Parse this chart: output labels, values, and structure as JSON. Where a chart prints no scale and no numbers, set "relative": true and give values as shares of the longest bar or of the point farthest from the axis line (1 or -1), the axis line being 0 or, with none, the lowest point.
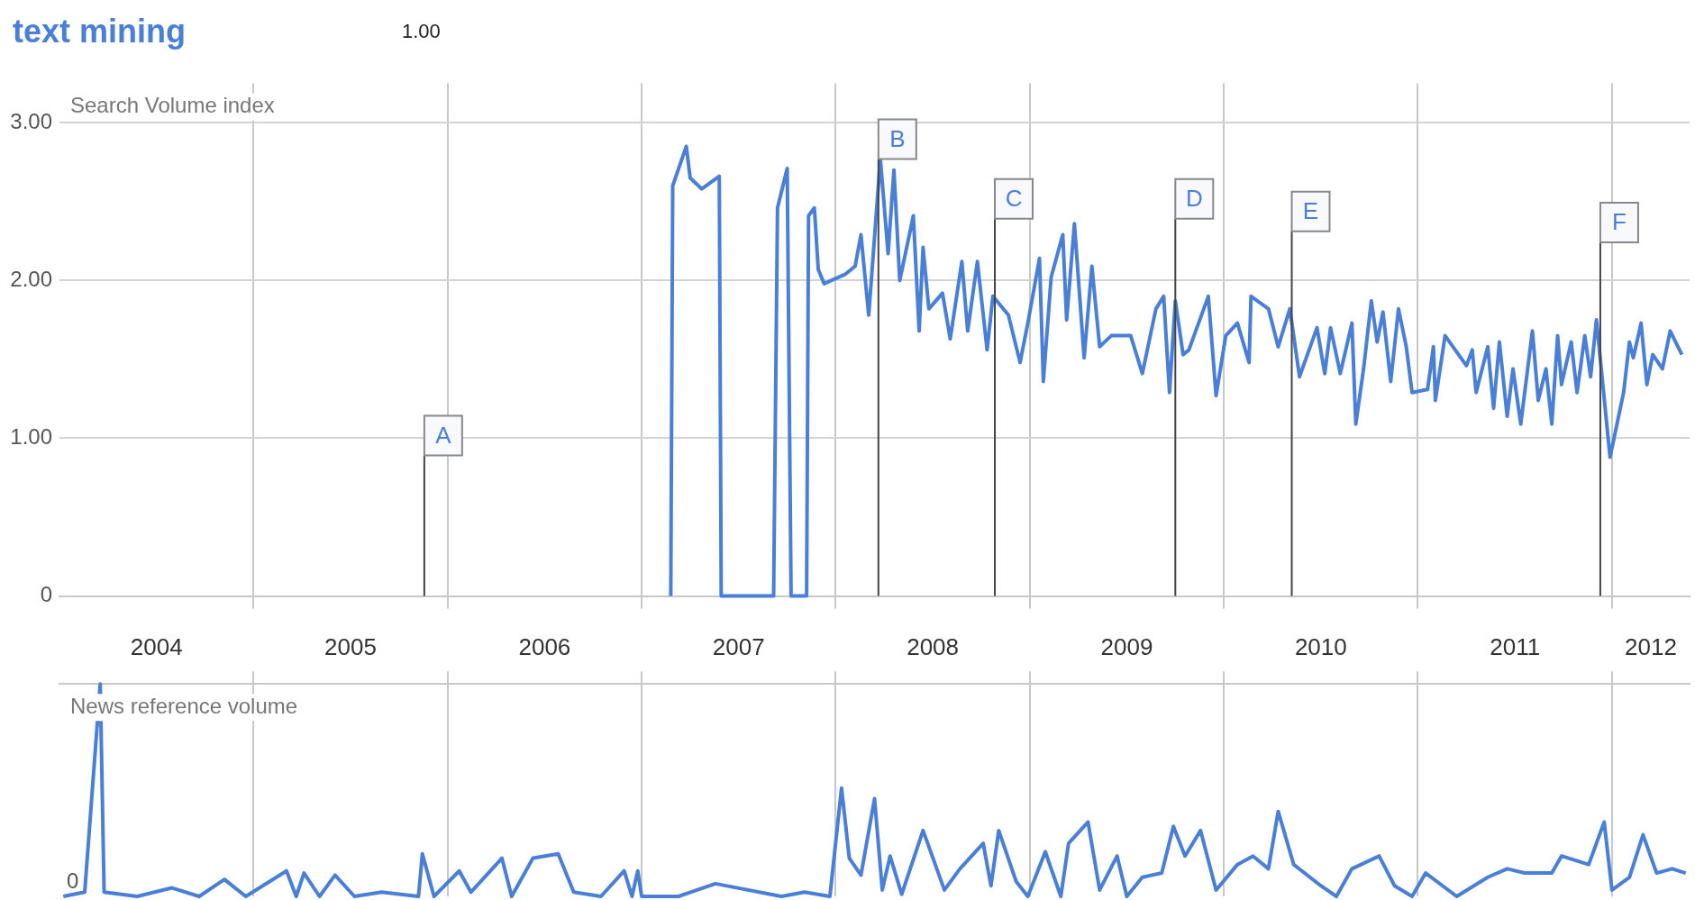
{
  "chart_data": [
    {
      "type": "line",
      "ylabel": "Search Volume index",
      "legend": "top left",
      "grid": true,
      "marker": "none",
      "tick_labels": "y",
      "annotations": [
        "1.00"
      ],
      "ref_lines": [
        {
          "axis": "x",
          "value": 2005.88,
          "label": "A"
        },
        {
          "axis": "x",
          "value": 2008.22,
          "label": "B"
        },
        {
          "axis": "x",
          "value": 2008.82,
          "label": "C"
        },
        {
          "axis": "x",
          "value": 2009.75,
          "label": "D"
        },
        {
          "axis": "x",
          "value": 2010.35,
          "label": "E"
        },
        {
          "axis": "x",
          "value": 2011.94,
          "label": "F"
        }
      ],
      "xlim": [
        2004,
        2012.4
      ],
      "ylim": [
        0,
        3.25
      ],
      "xticks": [
        {
          "value": 2005,
          "label": null
        },
        {
          "value": 2006,
          "label": null
        },
        {
          "value": 2007,
          "label": null
        },
        {
          "value": 2008,
          "label": null
        },
        {
          "value": 2009,
          "label": null
        },
        {
          "value": 2010,
          "label": null
        },
        {
          "value": 2011,
          "label": null
        },
        {
          "value": 2012,
          "label": null
        }
      ],
      "yticks": [
        {
          "value": 0,
          "label": "0"
        },
        {
          "value": 1,
          "label": "1.00"
        },
        {
          "value": 2,
          "label": "2.00"
        },
        {
          "value": 3,
          "label": "3.00"
        }
      ],
      "series": [
        {
          "name": "text mining",
          "color": "#4a7fd8",
          "x": [
            2007.15,
            2007.16,
            2007.23,
            2007.25,
            2007.31,
            2007.4,
            2007.41,
            2007.68,
            2007.7,
            2007.75,
            2007.77,
            2007.85,
            2007.86,
            2007.89,
            2007.91,
            2007.94,
            2008.05,
            2008.1,
            2008.13,
            2008.17,
            2008.23,
            2008.27,
            2008.3,
            2008.33,
            2008.4,
            2008.43,
            2008.45,
            2008.48,
            2008.55,
            2008.59,
            2008.65,
            2008.68,
            2008.73,
            2008.78,
            2008.81,
            2008.89,
            2008.95,
            2008.99,
            2009.05,
            2009.07,
            2009.11,
            2009.17,
            2009.19,
            2009.23,
            2009.28,
            2009.32,
            2009.36,
            2009.42,
            2009.52,
            2009.58,
            2009.65,
            2009.69,
            2009.72,
            2009.75,
            2009.79,
            2009.82,
            2009.92,
            2009.96,
            2010.01,
            2010.07,
            2010.13,
            2010.14,
            2010.23,
            2010.28,
            2010.34,
            2010.39,
            2010.48,
            2010.52,
            2010.55,
            2010.6,
            2010.66,
            2010.68,
            2010.72,
            2010.76,
            2010.79,
            2010.82,
            2010.86,
            2010.9,
            2010.94,
            2010.97,
            2011.05,
            2011.08,
            2011.09,
            2011.14,
            2011.25,
            2011.28,
            2011.3,
            2011.36,
            2011.39,
            2011.42,
            2011.46,
            2011.49,
            2011.53,
            2011.59,
            2011.62,
            2011.66,
            2011.69,
            2011.72,
            2011.74,
            2011.79,
            2011.82,
            2011.86,
            2011.89,
            2011.92,
            2011.99,
            2012.06,
            2012.09,
            2012.11,
            2012.15,
            2012.18,
            2012.21,
            2012.26,
            2012.3,
            2012.36
          ],
          "values": [
            0,
            2.6,
            2.85,
            2.65,
            2.58,
            2.66,
            0,
            0,
            2.46,
            2.71,
            0,
            0,
            2.41,
            2.46,
            2.07,
            1.98,
            2.04,
            2.09,
            2.29,
            1.78,
            2.77,
            2.17,
            2.7,
            2.0,
            2.41,
            1.68,
            2.21,
            1.82,
            1.92,
            1.63,
            2.12,
            1.68,
            2.12,
            1.56,
            1.9,
            1.78,
            1.48,
            1.73,
            2.14,
            1.36,
            2.02,
            2.29,
            1.75,
            2.36,
            1.51,
            2.09,
            1.58,
            1.65,
            1.65,
            1.41,
            1.82,
            1.9,
            1.29,
            1.87,
            1.53,
            1.56,
            1.9,
            1.27,
            1.65,
            1.73,
            1.48,
            1.9,
            1.82,
            1.58,
            1.82,
            1.39,
            1.7,
            1.41,
            1.7,
            1.41,
            1.73,
            1.09,
            1.44,
            1.87,
            1.61,
            1.8,
            1.36,
            1.82,
            1.58,
            1.29,
            1.31,
            1.58,
            1.24,
            1.65,
            1.46,
            1.56,
            1.29,
            1.58,
            1.19,
            1.61,
            1.14,
            1.44,
            1.09,
            1.68,
            1.24,
            1.44,
            1.09,
            1.65,
            1.34,
            1.61,
            1.29,
            1.65,
            1.39,
            1.75,
            0.88,
            1.29,
            1.61,
            1.51,
            1.73,
            1.34,
            1.53,
            1.44,
            1.68,
            1.53
          ]
        }
      ]
    },
    {
      "type": "line",
      "ylabel": "News reference volume",
      "relative": true,
      "grid": "x",
      "marker": "none",
      "tick_labels": "x",
      "annotations": [
        "0"
      ],
      "xlim": [
        2004,
        2012.4
      ],
      "xticks": [
        {
          "value": 2005,
          "label": null
        },
        {
          "value": 2006,
          "label": null
        },
        {
          "value": 2007,
          "label": null
        },
        {
          "value": 2008,
          "label": null
        },
        {
          "value": 2009,
          "label": null
        },
        {
          "value": 2010,
          "label": null
        },
        {
          "value": 2011,
          "label": null
        },
        {
          "value": 2012,
          "label": null
        },
        {
          "value": 2004.5,
          "label": "2004"
        },
        {
          "value": 2005.5,
          "label": "2005"
        },
        {
          "value": 2006.5,
          "label": "2006"
        },
        {
          "value": 2007.5,
          "label": "2007"
        },
        {
          "value": 2008.5,
          "label": "2008"
        },
        {
          "value": 2009.5,
          "label": "2009"
        },
        {
          "value": 2010.5,
          "label": "2010"
        },
        {
          "value": 2011.5,
          "label": "2011"
        },
        {
          "value": 2012.2,
          "label": "2012"
        }
      ],
      "series": [
        {
          "color": "#4a7fd8",
          "x": [
            2004.02,
            2004.13,
            2004.21,
            2004.23,
            2004.4,
            2004.58,
            2004.72,
            2004.85,
            2004.96,
            2005.17,
            2005.22,
            2005.26,
            2005.34,
            2005.42,
            2005.52,
            2005.66,
            2005.85,
            2005.87,
            2005.93,
            2006.06,
            2006.12,
            2006.28,
            2006.33,
            2006.44,
            2006.57,
            2006.65,
            2006.79,
            2006.91,
            2006.95,
            2006.98,
            2007.0,
            2007.19,
            2007.38,
            2007.72,
            2007.84,
            2007.97,
            2008.03,
            2008.07,
            2008.13,
            2008.2,
            2008.24,
            2008.28,
            2008.34,
            2008.45,
            2008.56,
            2008.64,
            2008.76,
            2008.8,
            2008.84,
            2008.93,
            2008.99,
            2009.08,
            2009.16,
            2009.2,
            2009.3,
            2009.36,
            2009.45,
            2009.5,
            2009.58,
            2009.68,
            2009.74,
            2009.8,
            2009.88,
            2009.96,
            2010.07,
            2010.15,
            2010.23,
            2010.28,
            2010.36,
            2010.5,
            2010.58,
            2010.66,
            2010.8,
            2010.88,
            2010.97,
            2011.04,
            2011.2,
            2011.36,
            2011.46,
            2011.55,
            2011.69,
            2011.74,
            2011.88,
            2011.96,
            2012.0,
            2012.09,
            2012.16,
            2012.23,
            2012.31,
            2012.38
          ],
          "values": [
            0,
            0.02,
            1.0,
            0.02,
            0,
            0.04,
            0,
            0.08,
            0,
            0.12,
            0,
            0.11,
            0,
            0.1,
            0,
            0.02,
            0,
            0.2,
            0,
            0.12,
            0.02,
            0.18,
            0,
            0.18,
            0.2,
            0.02,
            0,
            0.12,
            0,
            0.12,
            0,
            0,
            0.06,
            0,
            0.02,
            0,
            0.51,
            0.18,
            0.1,
            0.46,
            0.03,
            0.19,
            0.01,
            0.31,
            0.03,
            0.13,
            0.25,
            0.05,
            0.31,
            0.07,
            0,
            0.21,
            0,
            0.25,
            0.35,
            0.03,
            0.19,
            0,
            0.09,
            0.11,
            0.33,
            0.19,
            0.31,
            0.03,
            0.15,
            0.19,
            0.13,
            0.4,
            0.15,
            0.05,
            0,
            0.13,
            0.19,
            0.05,
            0,
            0.11,
            0,
            0.09,
            0.13,
            0.11,
            0.11,
            0.19,
            0.15,
            0.35,
            0.03,
            0.09,
            0.29,
            0.11,
            0.13,
            0.11
          ]
        }
      ]
    }
  ]
}
